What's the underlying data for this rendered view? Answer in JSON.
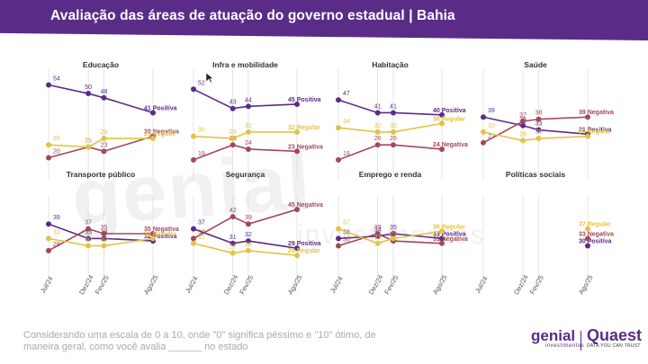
{
  "header": {
    "title": "Avaliação das áreas de atuação do governo estadual | Bahia"
  },
  "watermark": {
    "main": "genial",
    "secondary": "investimentos"
  },
  "footer": {
    "note": "Considerando uma escala de 0 a 10, onde \"0\" significa péssimo e \"10\" ótimo, de maneira geral, como você avalia ______ no estado"
  },
  "logos": {
    "genial_main": "genial",
    "genial_sub": "investimentos",
    "quaest_main": "Quaest",
    "quaest_sub": "DATA YOU CAN TRUST"
  },
  "colors": {
    "positiva": "#5b2c87",
    "negativa": "#a4485a",
    "regular": "#e2c344",
    "header": "#5b2c87"
  },
  "chart_data": [
    {
      "type": "line",
      "title": "Educação",
      "x": [
        "Jul/24",
        "Dez/24",
        "Fev/25",
        "Ago/25"
      ],
      "series": [
        {
          "name": "Positiva",
          "key": "positiva",
          "values": [
            54,
            50,
            48,
            41
          ]
        },
        {
          "name": "Negativa",
          "key": "negativa",
          "values": [
            20,
            25,
            23,
            30
          ]
        },
        {
          "name": "Regular",
          "key": "regular",
          "values": [
            26,
            25,
            29,
            29
          ]
        }
      ]
    },
    {
      "type": "line",
      "title": "Infra e mobilidade",
      "x": [
        "Jul/24",
        "Dez/24",
        "Fev/25",
        "Ago/25"
      ],
      "series": [
        {
          "name": "Positiva",
          "key": "positiva",
          "values": [
            52,
            43,
            44,
            45
          ]
        },
        {
          "name": "Negativa",
          "key": "negativa",
          "values": [
            19,
            26,
            24,
            23
          ]
        },
        {
          "name": "Regular",
          "key": "regular",
          "values": [
            30,
            29,
            32,
            32
          ]
        }
      ]
    },
    {
      "type": "line",
      "title": "Habitação",
      "x": [
        "Jul/24",
        "Dez/24",
        "Fev/25",
        "Ago/25"
      ],
      "series": [
        {
          "name": "Positiva",
          "key": "positiva",
          "values": [
            47,
            41,
            41,
            40
          ]
        },
        {
          "name": "Negativa",
          "key": "negativa",
          "values": [
            19,
            26,
            26,
            24
          ]
        },
        {
          "name": "Regular",
          "key": "regular",
          "values": [
            34,
            32,
            32,
            36
          ]
        }
      ]
    },
    {
      "type": "line",
      "title": "Saúde",
      "x": [
        "Jul/24",
        "Dez/24",
        "Fev/25",
        "Ago/25"
      ],
      "series": [
        {
          "name": "Positiva",
          "key": "positiva",
          "values": [
            39,
            35,
            33,
            31
          ]
        },
        {
          "name": "Negativa",
          "key": "negativa",
          "values": [
            27,
            37,
            38,
            39
          ]
        },
        {
          "name": "Regular",
          "key": "regular",
          "values": [
            32,
            28,
            29,
            30
          ]
        }
      ]
    },
    {
      "type": "line",
      "title": "Transporte público",
      "x": [
        "Jul/24",
        "Dez/24",
        "Fev/25",
        "Ago/25"
      ],
      "series": [
        {
          "name": "Positiva",
          "key": "positiva",
          "values": [
            39,
            33,
            33,
            32
          ]
        },
        {
          "name": "Negativa",
          "key": "negativa",
          "values": [
            28,
            37,
            35,
            35
          ]
        },
        {
          "name": "Regular",
          "key": "regular",
          "values": [
            33,
            30,
            30,
            33
          ]
        }
      ]
    },
    {
      "type": "line",
      "title": "Segurança",
      "x": [
        "Jul/24",
        "Dez/24",
        "Fev/25",
        "Ago/25"
      ],
      "series": [
        {
          "name": "Positiva",
          "key": "positiva",
          "values": [
            37,
            31,
            32,
            29
          ]
        },
        {
          "name": "Negativa",
          "key": "negativa",
          "values": [
            33,
            42,
            39,
            45
          ]
        },
        {
          "name": "Regular",
          "key": "regular",
          "values": [
            31,
            27,
            28,
            26
          ]
        }
      ]
    },
    {
      "type": "line",
      "title": "Emprego e renda",
      "x": [
        "Jul/24",
        "Dez/24",
        "Fev/25",
        "Ago/25"
      ],
      "series": [
        {
          "name": "Positiva",
          "key": "positiva",
          "values": [
            33,
            34,
            35,
            33
          ]
        },
        {
          "name": "Negativa",
          "key": "negativa",
          "values": [
            30,
            35,
            32,
            31
          ]
        },
        {
          "name": "Regular",
          "key": "regular",
          "values": [
            37,
            31,
            33,
            36
          ]
        }
      ]
    },
    {
      "type": "line",
      "title": "Políticas sociais",
      "x": [
        "Ago/25"
      ],
      "series": [
        {
          "name": "Positiva",
          "key": "positiva",
          "values": [
            30
          ]
        },
        {
          "name": "Negativa",
          "key": "negativa",
          "values": [
            33
          ]
        },
        {
          "name": "Regular",
          "key": "regular",
          "values": [
            37
          ]
        }
      ]
    }
  ]
}
